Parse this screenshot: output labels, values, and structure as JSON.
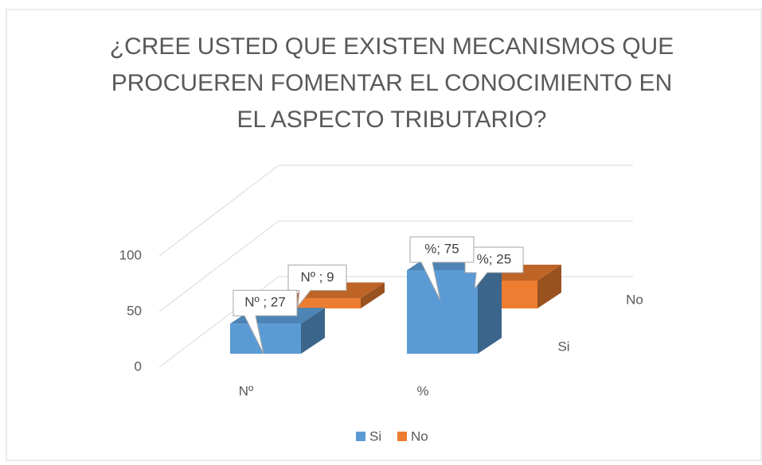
{
  "chart_data": {
    "type": "bar3d",
    "title": [
      "¿CREE USTED QUE EXISTEN MECANISMOS QUE",
      "PROCUEREN FOMENTAR EL CONOCIMIENTO EN",
      "EL ASPECTO TRIBUTARIO?"
    ],
    "categories": [
      "Nº",
      "%"
    ],
    "series": [
      {
        "name": "Si",
        "color": "#5b9bd5",
        "values": [
          27,
          75
        ],
        "value_labels": [
          "Nº ; 27",
          "%; 75"
        ]
      },
      {
        "name": "No",
        "color": "#ed7d31",
        "values": [
          9,
          25
        ],
        "value_labels": [
          "Nº ; 9",
          "%; 25"
        ]
      }
    ],
    "ylim": [
      0,
      100
    ],
    "yticks": [
      0,
      50,
      100
    ],
    "grid": true,
    "legend": "bottom"
  }
}
